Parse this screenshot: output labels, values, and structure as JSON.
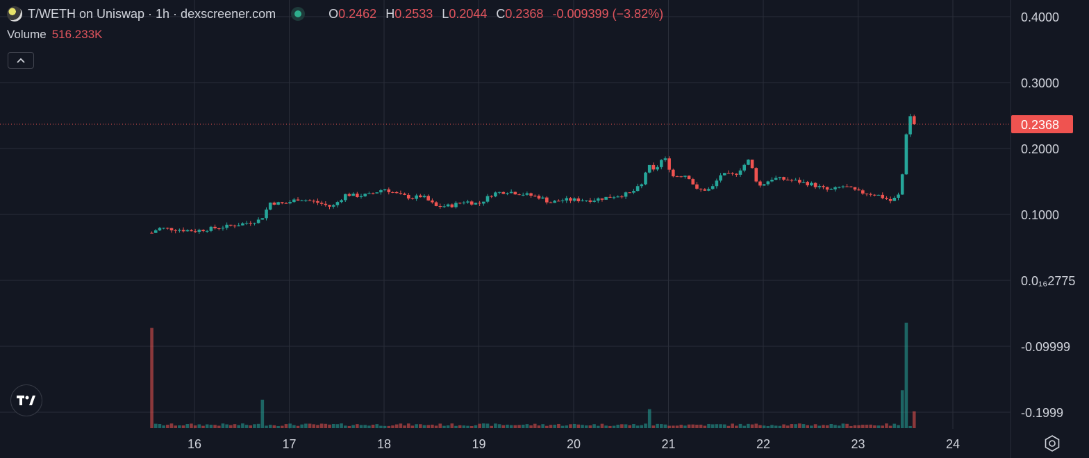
{
  "header": {
    "title": "T/WETH on Uniswap · 1h · dexscreener.com",
    "ohlc": {
      "o_label": "O",
      "o": "0.2462",
      "h_label": "H",
      "h": "0.2533",
      "l_label": "L",
      "l": "0.2044",
      "c_label": "C",
      "c": "0.2368",
      "change": "-0.009399 (−3.82%)"
    },
    "volume_label": "Volume",
    "volume_value": "516.233K",
    "collapse_icon": "chevron-up-icon"
  },
  "colors": {
    "background": "#131722",
    "up": "#26a69a",
    "down": "#ef5350",
    "grid": "#2a2e39",
    "text": "#d1d4dc"
  },
  "chart_data": {
    "type": "candlestick",
    "title": "T/WETH on Uniswap · 1h · dexscreener.com",
    "last_price": 0.2368,
    "last_price_label": "0.2368",
    "y_ticks": [
      {
        "label": "0.4000",
        "value": 0.4
      },
      {
        "label": "0.3000",
        "value": 0.3
      },
      {
        "label": "0.2000",
        "value": 0.2
      },
      {
        "label": "0.1000",
        "value": 0.1
      },
      {
        "label": "0.0₁₆2775",
        "value": 0.0
      },
      {
        "label": "-0.09999",
        "value": -0.1
      },
      {
        "label": "-0.1999",
        "value": -0.2
      }
    ],
    "x_ticks": [
      "16",
      "17",
      "18",
      "19",
      "20",
      "21",
      "22",
      "23",
      "24"
    ],
    "x_start_day": 15.55,
    "x_end_day": 23.6,
    "close_path": [
      [
        15.55,
        0.072
      ],
      [
        15.62,
        0.079
      ],
      [
        15.75,
        0.078
      ],
      [
        16.0,
        0.075
      ],
      [
        16.2,
        0.079
      ],
      [
        16.4,
        0.083
      ],
      [
        16.55,
        0.087
      ],
      [
        16.7,
        0.092
      ],
      [
        16.8,
        0.118
      ],
      [
        16.95,
        0.116
      ],
      [
        17.1,
        0.124
      ],
      [
        17.3,
        0.118
      ],
      [
        17.45,
        0.111
      ],
      [
        17.6,
        0.131
      ],
      [
        17.7,
        0.128
      ],
      [
        17.85,
        0.13
      ],
      [
        18.0,
        0.139
      ],
      [
        18.15,
        0.13
      ],
      [
        18.3,
        0.125
      ],
      [
        18.4,
        0.128
      ],
      [
        18.55,
        0.112
      ],
      [
        18.7,
        0.113
      ],
      [
        18.85,
        0.12
      ],
      [
        19.0,
        0.116
      ],
      [
        19.15,
        0.132
      ],
      [
        19.3,
        0.135
      ],
      [
        19.5,
        0.13
      ],
      [
        19.65,
        0.126
      ],
      [
        19.75,
        0.118
      ],
      [
        19.9,
        0.122
      ],
      [
        20.2,
        0.122
      ],
      [
        20.4,
        0.127
      ],
      [
        20.6,
        0.132
      ],
      [
        20.72,
        0.145
      ],
      [
        20.78,
        0.175
      ],
      [
        20.85,
        0.165
      ],
      [
        20.95,
        0.188
      ],
      [
        21.05,
        0.158
      ],
      [
        21.2,
        0.16
      ],
      [
        21.3,
        0.137
      ],
      [
        21.45,
        0.138
      ],
      [
        21.55,
        0.16
      ],
      [
        21.7,
        0.16
      ],
      [
        21.85,
        0.183
      ],
      [
        21.95,
        0.142
      ],
      [
        22.1,
        0.155
      ],
      [
        22.3,
        0.152
      ],
      [
        22.5,
        0.146
      ],
      [
        22.7,
        0.136
      ],
      [
        22.85,
        0.143
      ],
      [
        23.0,
        0.134
      ],
      [
        23.2,
        0.13
      ],
      [
        23.35,
        0.12
      ],
      [
        23.45,
        0.132
      ],
      [
        23.5,
        0.218
      ],
      [
        23.55,
        0.249
      ],
      [
        23.6,
        0.2368
      ]
    ],
    "volume_spikes": [
      {
        "day": 15.55,
        "relative": 0.95
      },
      {
        "day": 16.72,
        "relative": 0.27
      },
      {
        "day": 20.8,
        "relative": 0.18
      },
      {
        "day": 23.48,
        "relative": 0.36
      },
      {
        "day": 23.52,
        "relative": 1.0
      },
      {
        "day": 23.58,
        "relative": 0.16
      }
    ]
  },
  "footer": {
    "tv_logo": "TV",
    "settings_icon": "gear-icon"
  }
}
